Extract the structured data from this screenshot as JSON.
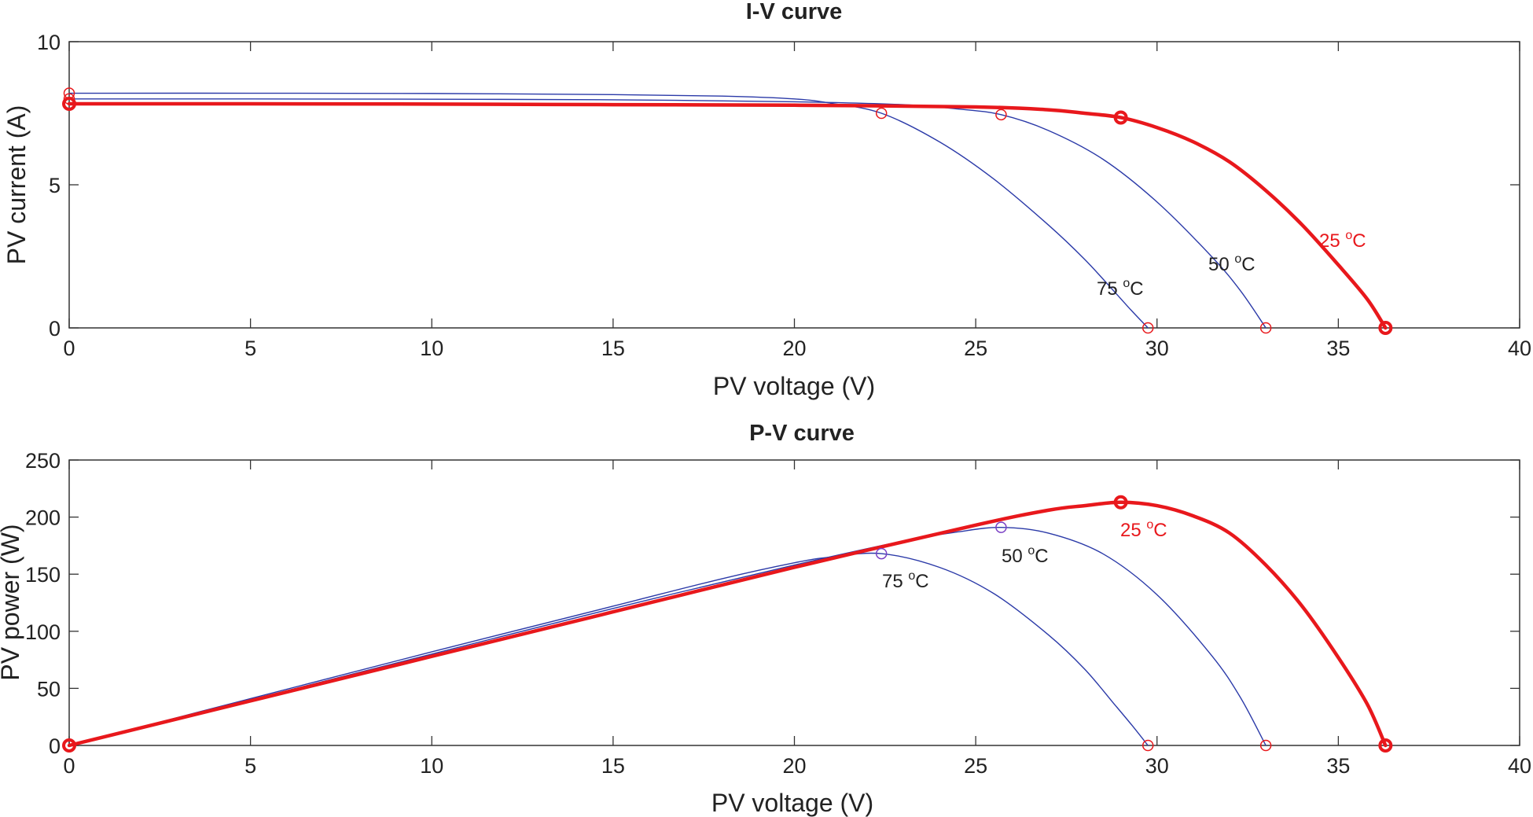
{
  "chart_data": [
    {
      "type": "line",
      "title": "I-V curve",
      "xlabel": "PV voltage (V)",
      "ylabel": "PV current (A)",
      "xlim": [
        0,
        40
      ],
      "ylim": [
        0,
        10
      ],
      "xticks": [
        "0",
        "5",
        "10",
        "15",
        "20",
        "25",
        "30",
        "35",
        "40"
      ],
      "yticks": [
        "0",
        "5",
        "10"
      ],
      "grid": false,
      "series": [
        {
          "name": "75 °C",
          "color": "#2b3aa8",
          "thick": false,
          "label": {
            "base": "75 ",
            "sup": "o",
            "unit": "C"
          },
          "x": [
            0,
            5,
            10,
            15,
            18,
            20,
            21,
            22.4,
            24,
            25.5,
            27,
            28,
            28.8,
            29.3,
            29.75
          ],
          "y": [
            8.2,
            8.2,
            8.19,
            8.15,
            8.1,
            8.0,
            7.85,
            7.5,
            6.5,
            5.2,
            3.6,
            2.4,
            1.3,
            0.6,
            0.0
          ],
          "markers": [
            {
              "x": 0,
              "y": 8.2
            },
            {
              "x": 22.4,
              "y": 7.5
            },
            {
              "x": 29.75,
              "y": 0
            }
          ]
        },
        {
          "name": "50 °C",
          "color": "#2b3aa8",
          "thick": false,
          "label": {
            "base": "50 ",
            "sup": "o",
            "unit": "C"
          },
          "x": [
            0,
            5,
            10,
            15,
            20,
            23,
            24.5,
            25.7,
            27,
            28.5,
            30,
            31.5,
            32.3,
            33.0
          ],
          "y": [
            8.0,
            8.0,
            7.99,
            7.97,
            7.9,
            7.8,
            7.65,
            7.45,
            6.9,
            5.9,
            4.4,
            2.5,
            1.3,
            0.0
          ],
          "markers": [
            {
              "x": 0,
              "y": 8.0
            },
            {
              "x": 25.7,
              "y": 7.45
            },
            {
              "x": 33.0,
              "y": 0
            }
          ]
        },
        {
          "name": "25 °C",
          "color": "#e8181c",
          "thick": true,
          "label": {
            "base": "25 ",
            "sup": "o",
            "unit": "C"
          },
          "x": [
            0,
            5,
            10,
            15,
            20,
            25,
            27,
            28,
            29,
            30,
            31,
            32,
            33,
            34,
            35,
            35.8,
            36.3
          ],
          "y": [
            7.83,
            7.83,
            7.82,
            7.8,
            7.78,
            7.72,
            7.62,
            7.5,
            7.35,
            7.0,
            6.5,
            5.8,
            4.8,
            3.6,
            2.2,
            1.0,
            0.0
          ],
          "markers": [
            {
              "x": 0,
              "y": 7.83
            },
            {
              "x": 29.0,
              "y": 7.35
            },
            {
              "x": 36.3,
              "y": 0
            }
          ]
        }
      ]
    },
    {
      "type": "line",
      "title": "P-V curve",
      "xlabel": "PV voltage (V)",
      "ylabel": "PV power (W)",
      "xlim": [
        0,
        40
      ],
      "ylim": [
        0,
        250
      ],
      "xticks": [
        "0",
        "5",
        "10",
        "15",
        "20",
        "25",
        "30",
        "35",
        "40"
      ],
      "yticks": [
        "0",
        "50",
        "100",
        "150",
        "200",
        "250"
      ],
      "grid": false,
      "series": [
        {
          "name": "75 °C",
          "color": "#2b3aa8",
          "thick": false,
          "label": {
            "base": "75 ",
            "sup": "o",
            "unit": "C"
          },
          "x": [
            0,
            5,
            10,
            15,
            18,
            20,
            21,
            22.4,
            24,
            25.5,
            27,
            28,
            28.8,
            29.3,
            29.75
          ],
          "y": [
            0,
            41,
            82,
            122,
            146,
            160,
            165,
            168,
            156,
            133,
            97,
            67,
            37,
            18,
            0
          ],
          "markers": [
            {
              "x": 0,
              "y": 0
            },
            {
              "x": 22.4,
              "y": 168
            },
            {
              "x": 29.75,
              "y": 0
            }
          ]
        },
        {
          "name": "50 °C",
          "color": "#2b3aa8",
          "thick": false,
          "label": {
            "base": "50 ",
            "sup": "o",
            "unit": "C"
          },
          "x": [
            0,
            5,
            10,
            15,
            20,
            23,
            24.5,
            25.7,
            27,
            28.5,
            30,
            31.5,
            32.3,
            33.0
          ],
          "y": [
            0,
            40,
            80,
            120,
            158,
            179,
            187,
            191,
            186,
            168,
            132,
            79,
            42,
            0
          ],
          "markers": [
            {
              "x": 0,
              "y": 0
            },
            {
              "x": 25.7,
              "y": 191
            },
            {
              "x": 33.0,
              "y": 0
            }
          ]
        },
        {
          "name": "25 °C",
          "color": "#e8181c",
          "thick": true,
          "label": {
            "base": "25 ",
            "sup": "o",
            "unit": "C"
          },
          "x": [
            0,
            5,
            10,
            15,
            20,
            25,
            27,
            28,
            29,
            30,
            31,
            32,
            33,
            34,
            35,
            35.8,
            36.3
          ],
          "y": [
            0,
            39,
            78,
            117,
            156,
            193,
            206,
            210,
            213,
            210,
            201,
            186,
            158,
            122,
            77,
            36,
            0
          ],
          "markers": [
            {
              "x": 0,
              "y": 0
            },
            {
              "x": 29.0,
              "y": 213
            },
            {
              "x": 36.3,
              "y": 0
            }
          ]
        }
      ]
    }
  ]
}
